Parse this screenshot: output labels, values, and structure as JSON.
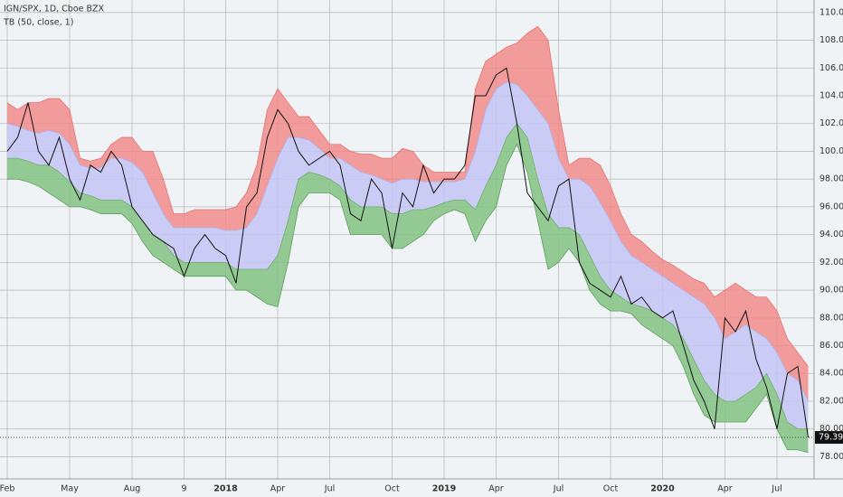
{
  "chart_data": {
    "type": "line",
    "title": "IGN/SPX, 1D, Cboe BZX",
    "subtitle": "TB (50, close, 1)",
    "categories": [
      "Feb",
      null,
      null,
      null,
      null,
      null,
      "May",
      null,
      null,
      null,
      null,
      null,
      "Aug",
      null,
      null,
      null,
      null,
      "9",
      null,
      null,
      null,
      "2018",
      null,
      null,
      null,
      null,
      "Apr",
      null,
      null,
      null,
      null,
      "Jul",
      null,
      null,
      null,
      null,
      null,
      "Oct",
      null,
      null,
      null,
      null,
      "2019",
      null,
      null,
      null,
      null,
      "Apr",
      null,
      null,
      null,
      null,
      null,
      "Jul",
      null,
      null,
      null,
      null,
      "Oct",
      null,
      null,
      null,
      null,
      "2020",
      null,
      null,
      null,
      null,
      null,
      "Apr",
      null,
      null,
      null,
      null,
      "Jul",
      null,
      null,
      null
    ],
    "ylim": [
      76.4,
      110.9
    ],
    "yticks": [
      {
        "value": 78,
        "label": "78.00"
      },
      {
        "value": 80,
        "label": "80.00"
      },
      {
        "value": 82,
        "label": "82.00"
      },
      {
        "value": 84,
        "label": "84.00"
      },
      {
        "value": 86,
        "label": "86.00"
      },
      {
        "value": 88,
        "label": "88.00"
      },
      {
        "value": 90,
        "label": "90.00"
      },
      {
        "value": 92,
        "label": "92.00"
      },
      {
        "value": 94,
        "label": "94.00"
      },
      {
        "value": 96,
        "label": "96.00"
      },
      {
        "value": 98,
        "label": "98.00"
      },
      {
        "value": 100,
        "label": "100.00"
      },
      {
        "value": 102,
        "label": "102.00"
      },
      {
        "value": 104,
        "label": "104.00"
      },
      {
        "value": 106,
        "label": "106.00"
      },
      {
        "value": 108,
        "label": "108.00"
      },
      {
        "value": 110,
        "label": "110.00"
      }
    ],
    "grid": true,
    "series": [
      {
        "color": "#e57373",
        "fill": "#f28b8b",
        "values": [
          103.5,
          103,
          103.5,
          103.5,
          103.8,
          103.8,
          103,
          99.5,
          99.3,
          99.5,
          100.5,
          101,
          101,
          100,
          100,
          98,
          95.5,
          95.5,
          95.8,
          95.8,
          95.8,
          95.8,
          96,
          97,
          99,
          103,
          104.5,
          103.5,
          102.5,
          102.5,
          101.5,
          100.5,
          100.5,
          100,
          99.8,
          99.8,
          99.5,
          99.5,
          100.2,
          100,
          99,
          98.5,
          98.5,
          98.5,
          98.5,
          104.5,
          106.5,
          107,
          107.5,
          107.8,
          108.5,
          109,
          108,
          103,
          99,
          99.5,
          99.5,
          99,
          97.5,
          95.5,
          94,
          93.5,
          92.8,
          92.2,
          91.8,
          91.3,
          90.8,
          90.5,
          89.5,
          90,
          90.5,
          90,
          89.5,
          89.5,
          88.5,
          86.5,
          85.5,
          84.5
        ]
      },
      {
        "color": "#b0b0ee",
        "fill": "#c4c4f4",
        "values": [
          102,
          101.8,
          101.5,
          101.3,
          101.5,
          101.3,
          100.5,
          99,
          98.8,
          98.8,
          99.5,
          99.5,
          99.2,
          98.5,
          97,
          95.5,
          94.5,
          94.5,
          94.5,
          94.5,
          94.5,
          94.3,
          94.3,
          94.5,
          95.5,
          97.5,
          99.5,
          101,
          101,
          100.8,
          100.2,
          99.5,
          99.5,
          99,
          98.5,
          98.3,
          98,
          97.7,
          98,
          98,
          97.8,
          97.8,
          97.8,
          97.8,
          98,
          100,
          103,
          104.5,
          105,
          104.8,
          104,
          103,
          102,
          99.5,
          98,
          98,
          97.5,
          96.3,
          95,
          93.5,
          92.5,
          92,
          91.5,
          91,
          90.5,
          90,
          89.5,
          89,
          88,
          86.5,
          87,
          87.5,
          87,
          86.5,
          85.5,
          84,
          83.5,
          82
        ]
      },
      {
        "color": "#6fae6f",
        "fill": "#82c282",
        "values": [
          99.5,
          99.5,
          99.3,
          99,
          99,
          98.5,
          97.8,
          97,
          96.8,
          96.5,
          96.5,
          96.5,
          96,
          95,
          94,
          93.5,
          92.5,
          92,
          92,
          92,
          92,
          92,
          91.5,
          91.5,
          91.5,
          91.5,
          92.5,
          95,
          98,
          98.5,
          98.3,
          98,
          97.5,
          96.5,
          96,
          96,
          96,
          95.5,
          95.5,
          95.8,
          95.8,
          96,
          96.3,
          96.5,
          96.5,
          95.8,
          97.5,
          99,
          101,
          102,
          101,
          98,
          95.5,
          94.5,
          94.5,
          94,
          92.5,
          91,
          90,
          89.5,
          89,
          88.8,
          88.5,
          88,
          87.5,
          86.5,
          85,
          83.5,
          82.5,
          82,
          82,
          82.5,
          83,
          84,
          82.5,
          80.5,
          80,
          80
        ]
      },
      {
        "color": "#5e9e5e",
        "values": [
          98,
          98,
          97.8,
          97.5,
          97,
          96.5,
          96,
          96,
          95.8,
          95.5,
          95.5,
          95.5,
          94.8,
          93.5,
          92.5,
          92,
          91.5,
          91,
          91,
          91,
          91,
          91,
          90,
          90,
          89.5,
          89,
          88.8,
          92,
          96,
          97,
          97,
          97,
          96.5,
          94,
          94,
          94,
          94,
          93,
          93,
          93.5,
          94,
          95,
          95.5,
          95.8,
          95.5,
          93.5,
          95,
          96,
          99,
          100.5,
          98.5,
          95,
          91.5,
          92,
          93,
          92,
          90,
          89,
          88.5,
          88.5,
          88.3,
          87.5,
          87,
          86.5,
          86,
          84.5,
          82.5,
          81,
          80.5,
          80.5,
          80.5,
          80.5,
          81.5,
          82.5,
          80,
          78.5,
          78.5,
          78.3
        ]
      },
      {
        "color": "#111111",
        "values": [
          100,
          101,
          103.5,
          100,
          99,
          101,
          98,
          96.5,
          99,
          98.5,
          100,
          99,
          96,
          95,
          94,
          93.5,
          93,
          91,
          93,
          94,
          93,
          92.5,
          90.5,
          96,
          97,
          101,
          103,
          102,
          100,
          99,
          99.5,
          100,
          99,
          95.5,
          95,
          98,
          97,
          93,
          97,
          96,
          99,
          97,
          98,
          98,
          99,
          104,
          104,
          105.5,
          106,
          102,
          97,
          96,
          95,
          97.5,
          98,
          92,
          90.5,
          90,
          89.5,
          91,
          89,
          89.5,
          88.5,
          88,
          88.5,
          86,
          83.5,
          82,
          80,
          88,
          87,
          88.5,
          85,
          83,
          80,
          84,
          84.5,
          79.39
        ]
      }
    ]
  }
}
